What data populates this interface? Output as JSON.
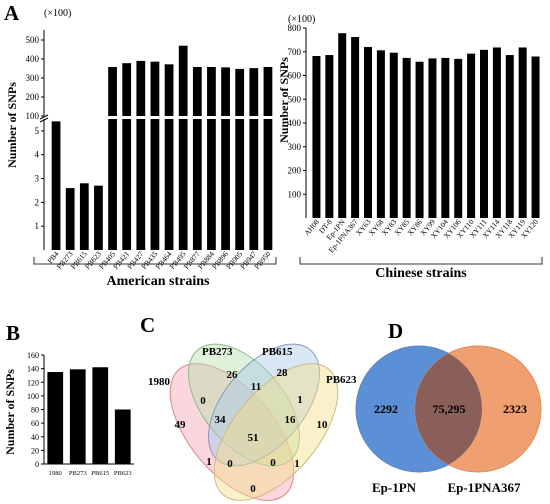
{
  "panels": {
    "a": {
      "letter": "A",
      "group_left": "American strains",
      "group_right": "Chinese strains"
    },
    "b": {
      "letter": "B"
    },
    "c": {
      "letter": "C"
    },
    "d": {
      "letter": "D"
    }
  },
  "chart_data": [
    {
      "type": "bar",
      "panel": "A-left",
      "ylabel": "Number of SNPs",
      "multiplier": "(×100)",
      "axis_break": true,
      "lower_ylim": [
        0,
        5.5
      ],
      "upper_ylim": [
        100,
        500
      ],
      "lower_ticks": [
        "1",
        "2",
        "3",
        "4",
        "5"
      ],
      "upper_ticks": [
        "100",
        "200",
        "300",
        "400",
        "500"
      ],
      "categories": [
        "PB4",
        "PB273",
        "PB615",
        "PB623",
        "PB405",
        "PB421",
        "PB427",
        "PB435",
        "PB464",
        "PB495",
        "PB877",
        "PB884",
        "PB896",
        "PB905",
        "PB947",
        "PB950"
      ],
      "values": [
        5.4,
        2.6,
        2.8,
        2.7,
        358,
        378,
        390,
        386,
        372,
        470,
        358,
        358,
        356,
        348,
        352,
        358
      ]
    },
    {
      "type": "bar",
      "panel": "A-right",
      "ylabel": "Number of SNPs",
      "multiplier": "(×100)",
      "ylim": [
        0,
        800
      ],
      "ticks": [
        "100",
        "200",
        "300",
        "400",
        "500",
        "600",
        "700",
        "800"
      ],
      "categories": [
        "AH08",
        "DT-8",
        "Ep-1PN",
        "Ep-1PNA367",
        "XY63",
        "XY68",
        "XY83",
        "XY85",
        "XY86",
        "XY99",
        "XY104",
        "XY106",
        "XY110",
        "XY111",
        "XY114",
        "XY118",
        "XY119",
        "XY120"
      ],
      "values": [
        682,
        686,
        778,
        762,
        720,
        706,
        696,
        674,
        658,
        672,
        674,
        670,
        692,
        708,
        718,
        686,
        718,
        680
      ]
    },
    {
      "type": "bar",
      "panel": "B",
      "ylabel": "Number of SNPs",
      "ylim": [
        0,
        160
      ],
      "ticks": [
        "0",
        "20",
        "40",
        "60",
        "80",
        "100",
        "120",
        "140",
        "160"
      ],
      "categories": [
        "1980",
        "PB273",
        "PB615",
        "PB623"
      ],
      "values": [
        135,
        139,
        142,
        80
      ]
    },
    {
      "type": "venn",
      "panel": "C",
      "sets": [
        "1980",
        "PB273",
        "PB615",
        "PB623"
      ],
      "regions": [
        "49",
        "26",
        "28",
        "10",
        "0",
        "11",
        "1",
        "34",
        "16",
        "51",
        "1",
        "0",
        "1",
        "0",
        "0"
      ]
    },
    {
      "type": "venn",
      "panel": "D",
      "sets": [
        "Ep-1PN",
        "Ep-1PNA367"
      ],
      "regions": {
        "only_left": "2292",
        "shared": "75,295",
        "only_right": "2323"
      },
      "colors": {
        "left": "#5b8fd6",
        "right": "#f0a070",
        "overlap": "#8a5f5a"
      }
    }
  ]
}
